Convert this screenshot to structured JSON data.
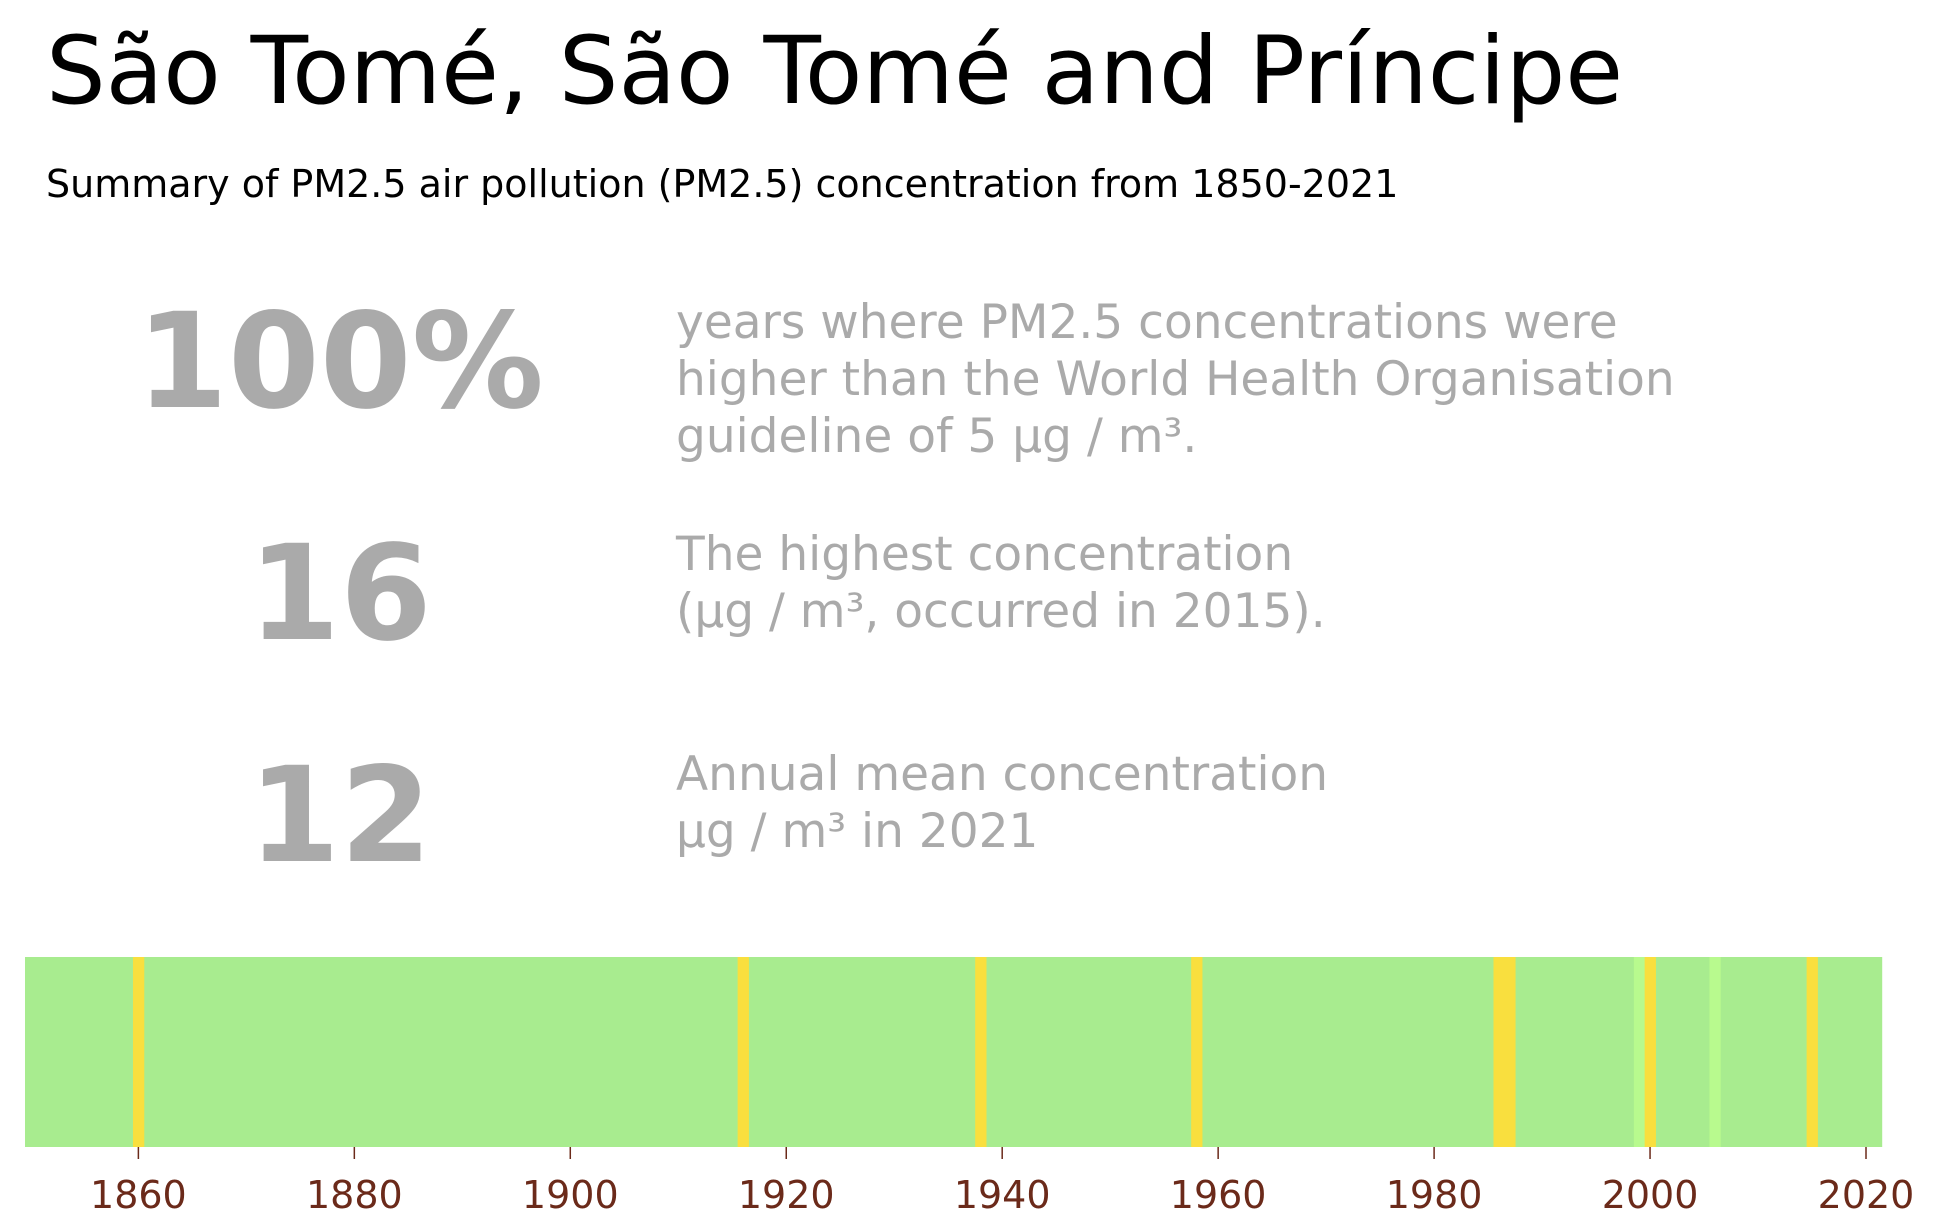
{
  "header": {
    "title": "São Tomé, São Tomé and Príncipe",
    "subtitle": "Summary of PM2.5 air pollution (PM2.5) concentration from 1850-2021"
  },
  "stats": [
    {
      "value": "100%",
      "description": "years where PM2.5 concentrations were\nhigher than the World Health Organisation\nguideline of 5 µg / m³."
    },
    {
      "value": "16",
      "description": "The highest concentration\n(µg / m³, occurred in 2015)."
    },
    {
      "value": "12",
      "description": "Annual mean concentration\nµg / m³ in 2021"
    }
  ],
  "colors": {
    "stat_text": "#aaaaaa",
    "tick_label": "#6b2a1a",
    "base_stripe": "#a8ec8f",
    "high_stripe": "#f9df3e",
    "light_stripe": "#b8fa8e"
  },
  "chart_data": {
    "type": "heatmap",
    "x_range": [
      1850,
      2021
    ],
    "xlim": [
      1849.5,
      2022.5
    ],
    "x_ticks": [
      1860,
      1880,
      1900,
      1920,
      1940,
      1960,
      1980,
      2000,
      2020
    ],
    "base_color": "#a8ec8f",
    "highlighted_years": [
      {
        "year": 1860,
        "color": "#f9df3e"
      },
      {
        "year": 1916,
        "color": "#f9df3e"
      },
      {
        "year": 1938,
        "color": "#f9df3e"
      },
      {
        "year": 1958,
        "color": "#f9df3e"
      },
      {
        "year": 1986,
        "color": "#f9df3e"
      },
      {
        "year": 1987,
        "color": "#f9df3e"
      },
      {
        "year": 1999,
        "color": "#b8fa8e"
      },
      {
        "year": 2000,
        "color": "#f9df3e"
      },
      {
        "year": 2006,
        "color": "#b8fa8e"
      },
      {
        "year": 2015,
        "color": "#f9df3e"
      }
    ],
    "grid": false,
    "legend": "none"
  }
}
